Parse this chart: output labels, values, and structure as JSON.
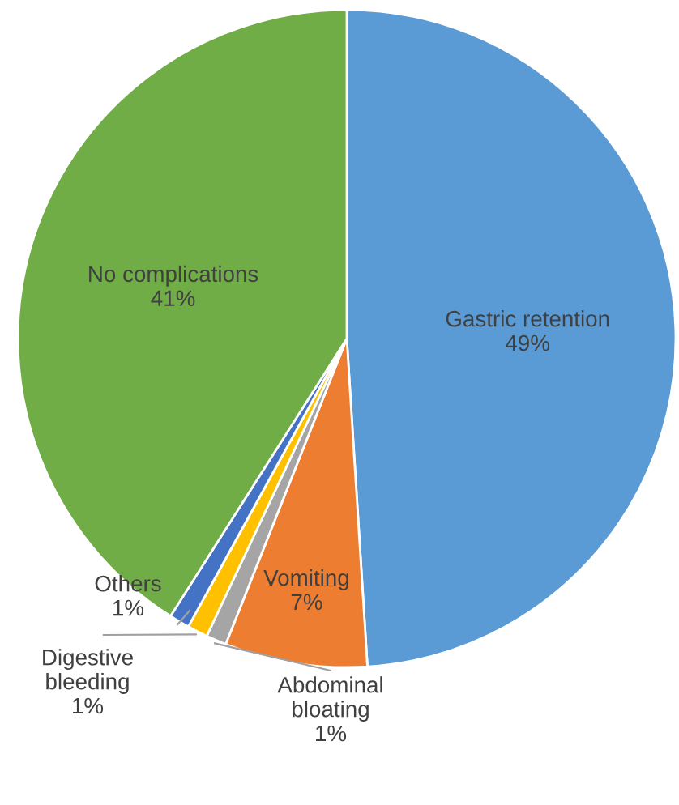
{
  "chart_data": {
    "type": "pie",
    "categories": [
      "Gastric retention",
      "Vomiting",
      "Abdominal bloating",
      "Digestive bleeding",
      "Others",
      "No complications"
    ],
    "values": [
      49,
      7,
      1,
      1,
      1,
      41
    ],
    "value_labels": [
      "49%",
      "7%",
      "1%",
      "1%",
      "1%",
      "41%"
    ],
    "colors": [
      "#5b9bd5",
      "#ed7d31",
      "#a5a5a5",
      "#ffc000",
      "#4472c4",
      "#70ad47"
    ]
  }
}
